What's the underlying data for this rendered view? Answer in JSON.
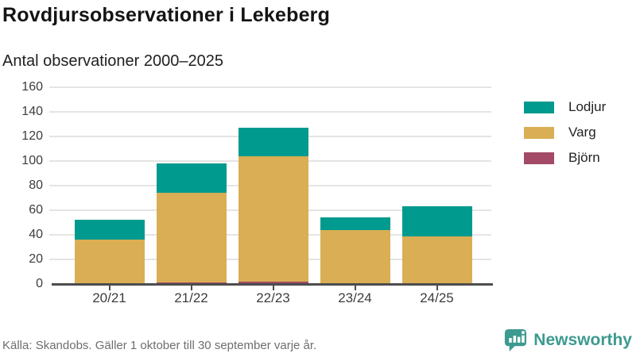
{
  "header": {
    "title": "Rovdjursobservationer i Lekeberg",
    "subtitle": "Antal observationer 2000–2025"
  },
  "chart_data": {
    "type": "bar",
    "stacked": true,
    "title": "Rovdjursobservationer i Lekeberg",
    "subtitle": "Antal observationer 2000–2025",
    "categories": [
      "20/21",
      "21/22",
      "22/23",
      "23/24",
      "24/25"
    ],
    "series": [
      {
        "name": "Lodjur",
        "color": "#009a8e",
        "values": [
          16,
          24,
          23,
          10,
          24
        ]
      },
      {
        "name": "Varg",
        "color": "#d9ae55",
        "values": [
          36,
          73,
          102,
          44,
          39
        ]
      },
      {
        "name": "Björn",
        "color": "#a34a66",
        "values": [
          0,
          1,
          2,
          0,
          0
        ]
      }
    ],
    "stack_order_bottom_to_top": [
      "Björn",
      "Varg",
      "Lodjur"
    ],
    "totals": [
      52,
      98,
      127,
      54,
      63
    ],
    "xlabel": "",
    "ylabel": "",
    "ylim": [
      0,
      160
    ],
    "yticks": [
      0,
      20,
      40,
      60,
      80,
      100,
      120,
      140,
      160
    ],
    "grid": true,
    "legend_position": "right",
    "axis_text_color": "#3d3d3d",
    "gridline_color": "#e4e4e4",
    "axis_line_color": "#4d4d4d"
  },
  "footer": {
    "source": "Källa: Skandobs. Gäller 1 oktober till 30 september varje år.",
    "brand": {
      "name": "Newsworthy",
      "color": "#3d9a8f"
    }
  }
}
